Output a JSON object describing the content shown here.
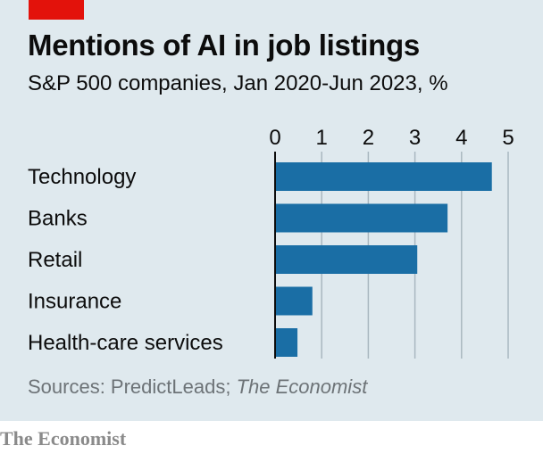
{
  "header": {
    "title": "Mentions of AI in job listings",
    "subtitle": "S&P 500 companies, Jan 2020-Jun 2023, %"
  },
  "source": {
    "prefix": "Sources: PredictLeads; ",
    "italic": "The Economist"
  },
  "footer": {
    "brand": "The Economist"
  },
  "colors": {
    "bar": "#1a6ea5",
    "background": "#dfe9ee",
    "grid": "#a9b7c0",
    "accent": "#e3120b"
  },
  "chart_data": {
    "type": "bar",
    "orientation": "horizontal",
    "title": "Mentions of AI in job listings",
    "subtitle": "S&P 500 companies, Jan 2020-Jun 2023, %",
    "categories": [
      "Technology",
      "Banks",
      "Retail",
      "Insurance",
      "Health-care services"
    ],
    "values": [
      4.65,
      3.7,
      3.05,
      0.8,
      0.48
    ],
    "xlim": [
      0,
      5
    ],
    "xticks": [
      "0",
      "1",
      "2",
      "3",
      "4",
      "5"
    ],
    "grid": true,
    "axis_position": "top"
  }
}
